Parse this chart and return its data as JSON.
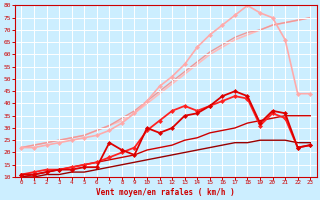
{
  "title": "",
  "xlabel": "Vent moyen/en rafales ( km/h )",
  "ylabel": "",
  "xlim": [
    -0.5,
    23.5
  ],
  "ylim": [
    10,
    80
  ],
  "yticks": [
    10,
    15,
    20,
    25,
    30,
    35,
    40,
    45,
    50,
    55,
    60,
    65,
    70,
    75,
    80
  ],
  "xticks": [
    0,
    1,
    2,
    3,
    4,
    5,
    6,
    7,
    8,
    9,
    10,
    11,
    12,
    13,
    14,
    15,
    16,
    17,
    18,
    19,
    20,
    21,
    22,
    23
  ],
  "background_color": "#cceeff",
  "grid_color": "#aaddcc",
  "series": [
    {
      "x": [
        0,
        1,
        2,
        3,
        4,
        5,
        6,
        7,
        8,
        9,
        10,
        11,
        12,
        13,
        14,
        15,
        16,
        17,
        18,
        19,
        20,
        21,
        22,
        23
      ],
      "y": [
        22,
        23,
        24,
        25,
        26,
        27,
        29,
        31,
        33,
        36,
        40,
        44,
        48,
        52,
        56,
        60,
        63,
        66,
        68,
        70,
        72,
        73,
        74,
        75
      ],
      "color": "#ffbbbb",
      "linewidth": 1.2,
      "marker": null,
      "markersize": 0,
      "zorder": 1
    },
    {
      "x": [
        0,
        1,
        2,
        3,
        4,
        5,
        6,
        7,
        8,
        9,
        10,
        11,
        12,
        13,
        14,
        15,
        16,
        17,
        18,
        19,
        20,
        21,
        22,
        23
      ],
      "y": [
        22,
        22,
        23,
        24,
        25,
        26,
        27,
        29,
        32,
        36,
        41,
        47,
        51,
        56,
        63,
        68,
        72,
        76,
        80,
        77,
        75,
        66,
        44,
        44
      ],
      "color": "#ffaaaa",
      "linewidth": 1.2,
      "marker": "D",
      "markersize": 2,
      "zorder": 2
    },
    {
      "x": [
        0,
        1,
        2,
        3,
        4,
        5,
        6,
        7,
        8,
        9,
        10,
        11,
        12,
        13,
        14,
        15,
        16,
        17,
        18,
        19,
        20,
        21,
        22,
        23
      ],
      "y": [
        22,
        23,
        24,
        25,
        26,
        27,
        29,
        31,
        34,
        37,
        41,
        45,
        49,
        53,
        57,
        61,
        64,
        67,
        69,
        70,
        72,
        73,
        74,
        75
      ],
      "color": "#ee9999",
      "linewidth": 1.0,
      "marker": null,
      "markersize": 0,
      "zorder": 1
    },
    {
      "x": [
        0,
        1,
        2,
        3,
        4,
        5,
        6,
        7,
        8,
        9,
        10,
        11,
        12,
        13,
        14,
        15,
        16,
        17,
        18,
        19,
        20,
        21,
        22,
        23
      ],
      "y": [
        11,
        11,
        12,
        13,
        13,
        14,
        14,
        24,
        21,
        19,
        30,
        28,
        30,
        35,
        36,
        39,
        43,
        45,
        43,
        32,
        37,
        36,
        22,
        23
      ],
      "color": "#dd0000",
      "linewidth": 1.3,
      "marker": "D",
      "markersize": 2,
      "zorder": 4
    },
    {
      "x": [
        0,
        1,
        2,
        3,
        4,
        5,
        6,
        7,
        8,
        9,
        10,
        11,
        12,
        13,
        14,
        15,
        16,
        17,
        18,
        19,
        20,
        21,
        22,
        23
      ],
      "y": [
        11,
        12,
        13,
        13,
        14,
        15,
        16,
        18,
        20,
        22,
        29,
        33,
        37,
        39,
        37,
        39,
        41,
        43,
        42,
        31,
        36,
        34,
        22,
        23
      ],
      "color": "#ff2222",
      "linewidth": 1.3,
      "marker": "D",
      "markersize": 2,
      "zorder": 3
    },
    {
      "x": [
        0,
        1,
        2,
        3,
        4,
        5,
        6,
        7,
        8,
        9,
        10,
        11,
        12,
        13,
        14,
        15,
        16,
        17,
        18,
        19,
        20,
        21,
        22,
        23
      ],
      "y": [
        10,
        11,
        12,
        13,
        14,
        15,
        16,
        17,
        18,
        19,
        21,
        22,
        23,
        25,
        26,
        28,
        29,
        30,
        32,
        33,
        34,
        35,
        35,
        35
      ],
      "color": "#cc0000",
      "linewidth": 1.0,
      "marker": null,
      "markersize": 0,
      "zorder": 2
    },
    {
      "x": [
        0,
        1,
        2,
        3,
        4,
        5,
        6,
        7,
        8,
        9,
        10,
        11,
        12,
        13,
        14,
        15,
        16,
        17,
        18,
        19,
        20,
        21,
        22,
        23
      ],
      "y": [
        10,
        10,
        11,
        11,
        12,
        12,
        13,
        14,
        15,
        16,
        17,
        18,
        19,
        20,
        21,
        22,
        23,
        24,
        24,
        25,
        25,
        25,
        24,
        24
      ],
      "color": "#990000",
      "linewidth": 1.0,
      "marker": null,
      "markersize": 0,
      "zorder": 2
    }
  ]
}
